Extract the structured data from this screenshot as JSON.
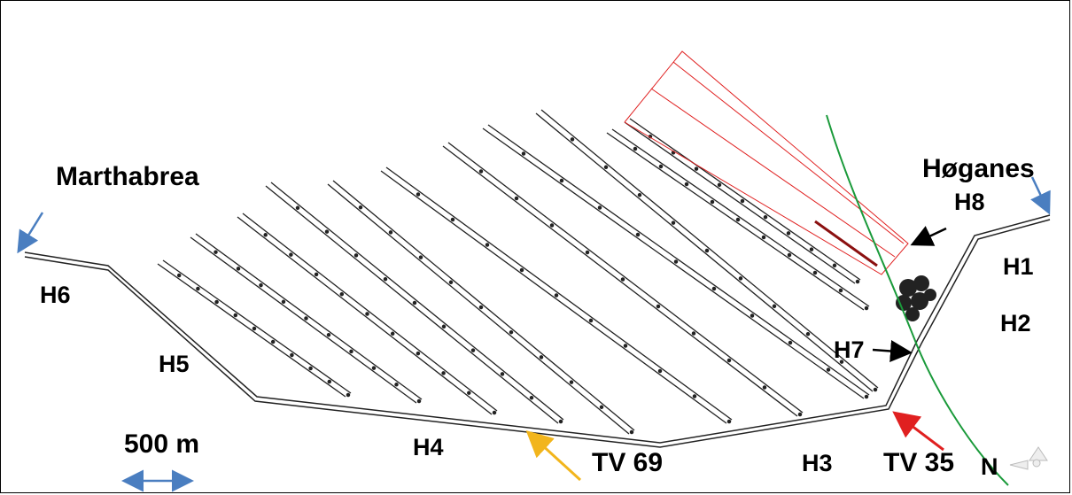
{
  "map": {
    "places": {
      "marthabrea": "Marthabrea",
      "hoganes": "Høganes"
    },
    "headings": {
      "h1": "H1",
      "h2": "H2",
      "h3": "H3",
      "h4": "H4",
      "h5": "H5",
      "h6": "H6",
      "h7": "H7",
      "h8": "H8"
    },
    "tunnels": {
      "tv69": "TV 69",
      "tv35": "TV 35"
    },
    "scale_bar": {
      "label": "500 m"
    },
    "north": {
      "label": "N"
    },
    "colors": {
      "tunnel": "#222222",
      "planned": "#e02020",
      "fault_line": "#1a9a3a",
      "arrow_place": "#4a7ec0",
      "arrow_tv69": "#f2b51c",
      "arrow_tv35": "#e02020",
      "arrow_black": "#000000"
    },
    "icons": {
      "north": "compass-axis-icon"
    }
  }
}
